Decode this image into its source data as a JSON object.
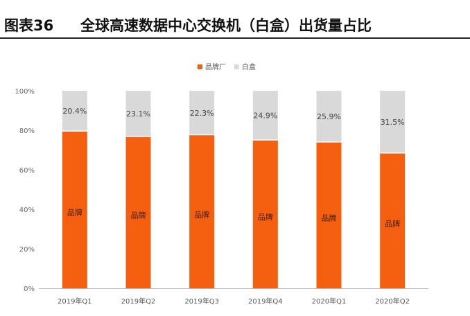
{
  "header": {
    "figure_number": "图表36",
    "title": "全球高速数据中心交换机（白盒）出货量占比"
  },
  "colors": {
    "brand": "#f4600f",
    "whitebox": "#d9d9d9",
    "axis": "#bbbbbb"
  },
  "chart_data": {
    "type": "bar",
    "stacked": true,
    "percent": true,
    "title": "",
    "xlabel": "",
    "ylabel": "",
    "ylim": [
      0,
      100
    ],
    "yticks": [
      "0%",
      "20%",
      "40%",
      "60%",
      "80%",
      "100%"
    ],
    "legend_position": "top-center",
    "grid": false,
    "categories": [
      "2019年Q1",
      "2019年Q2",
      "2019年Q3",
      "2019年Q4",
      "2020年Q1",
      "2020年Q2"
    ],
    "series": [
      {
        "name": "品牌厂",
        "color": "#f4600f",
        "values": [
          79.6,
          76.9,
          77.7,
          75.1,
          74.1,
          68.5
        ],
        "labels": [
          "品牌",
          "品牌",
          "品牌",
          "品牌",
          "品牌",
          "品牌"
        ]
      },
      {
        "name": "白盒",
        "color": "#d9d9d9",
        "values": [
          20.4,
          23.1,
          22.3,
          24.9,
          25.9,
          31.5
        ],
        "labels": [
          "20.4%",
          "23.1%",
          "22.3%",
          "24.9%",
          "25.9%",
          "31.5%"
        ]
      }
    ]
  }
}
